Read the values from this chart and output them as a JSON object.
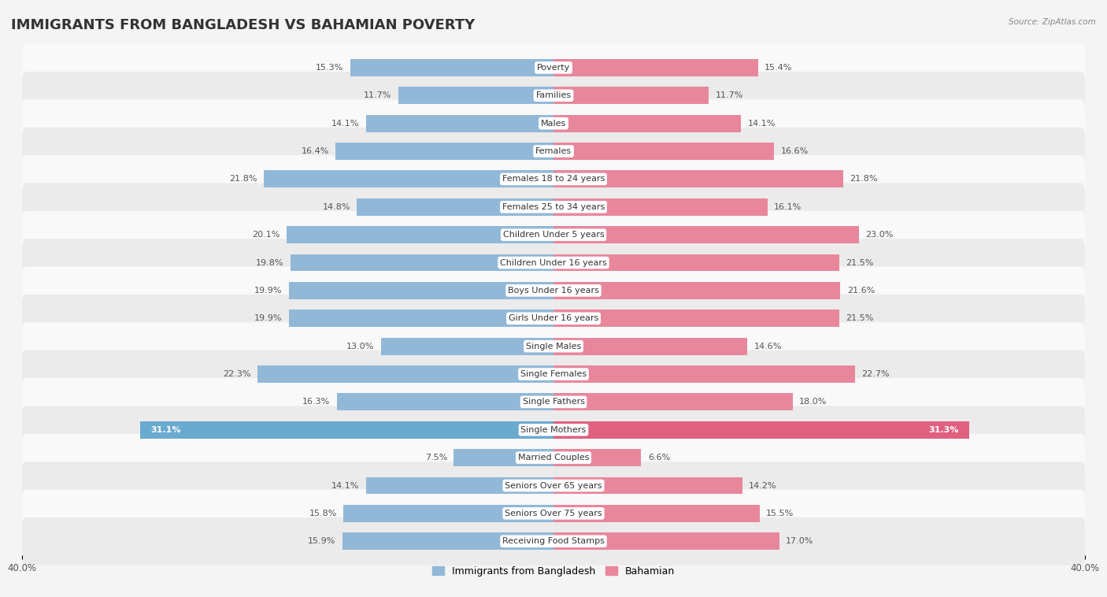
{
  "title": "IMMIGRANTS FROM BANGLADESH VS BAHAMIAN POVERTY",
  "source": "Source: ZipAtlas.com",
  "categories": [
    "Poverty",
    "Families",
    "Males",
    "Females",
    "Females 18 to 24 years",
    "Females 25 to 34 years",
    "Children Under 5 years",
    "Children Under 16 years",
    "Boys Under 16 years",
    "Girls Under 16 years",
    "Single Males",
    "Single Females",
    "Single Fathers",
    "Single Mothers",
    "Married Couples",
    "Seniors Over 65 years",
    "Seniors Over 75 years",
    "Receiving Food Stamps"
  ],
  "left_values": [
    15.3,
    11.7,
    14.1,
    16.4,
    21.8,
    14.8,
    20.1,
    19.8,
    19.9,
    19.9,
    13.0,
    22.3,
    16.3,
    31.1,
    7.5,
    14.1,
    15.8,
    15.9
  ],
  "right_values": [
    15.4,
    11.7,
    14.1,
    16.6,
    21.8,
    16.1,
    23.0,
    21.5,
    21.6,
    21.5,
    14.6,
    22.7,
    18.0,
    31.3,
    6.6,
    14.2,
    15.5,
    17.0
  ],
  "left_color": "#92b8d8",
  "right_color": "#e8879c",
  "highlight_left_color": "#6aaad0",
  "highlight_right_color": "#e06080",
  "axis_limit": 40.0,
  "bar_height": 0.62,
  "background_color": "#f4f4f4",
  "row_light_color": "#f9f9f9",
  "row_dark_color": "#ebebeb",
  "legend_left_label": "Immigrants from Bangladesh",
  "legend_right_label": "Bahamian",
  "title_fontsize": 13,
  "label_fontsize": 8.0,
  "value_fontsize": 8.0,
  "highlight_indices": [
    13
  ]
}
